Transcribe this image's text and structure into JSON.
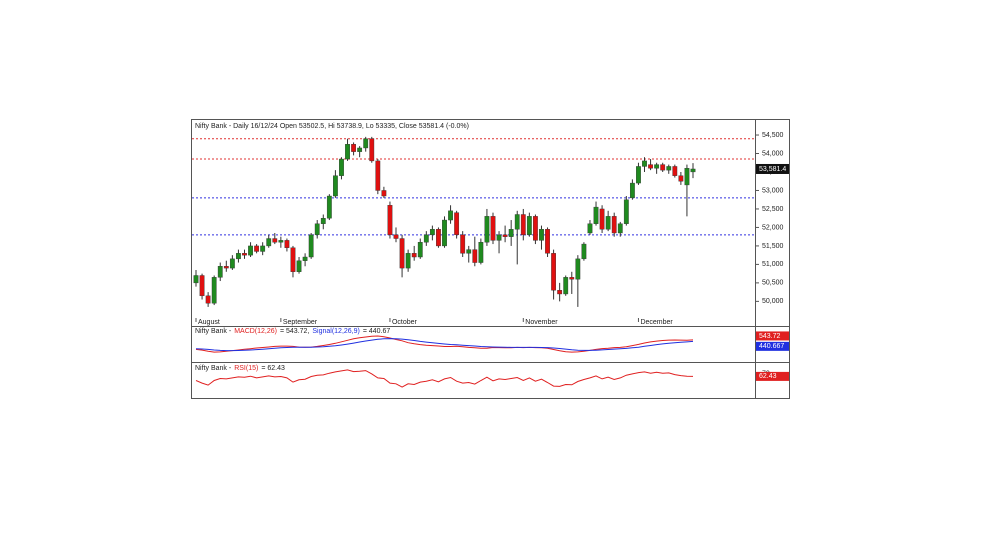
{
  "chart_data": {
    "type": "candlestick",
    "title": "Nifty Bank - Daily 16/12/24 Open 53502.5, Hi 53738.9, Lo 53335, Close 53581.4 (-0.0%)",
    "last_price_label": "53,581.4",
    "up_color": "#1f8a1f",
    "down_color": "#e01010",
    "categories": [
      "August",
      null,
      null,
      null,
      null,
      null,
      null,
      null,
      null,
      null,
      null,
      null,
      null,
      null,
      "September",
      null,
      null,
      null,
      null,
      null,
      null,
      null,
      null,
      null,
      null,
      null,
      null,
      null,
      null,
      null,
      null,
      null,
      "October",
      null,
      null,
      null,
      null,
      null,
      null,
      null,
      null,
      null,
      null,
      null,
      null,
      null,
      null,
      null,
      null,
      null,
      null,
      null,
      null,
      null,
      "November",
      null,
      null,
      null,
      null,
      null,
      null,
      null,
      null,
      null,
      null,
      null,
      null,
      null,
      null,
      null,
      null,
      null,
      null,
      "December",
      null,
      null,
      null,
      null,
      null,
      null,
      null,
      null,
      null
    ],
    "ohlc": [
      [
        50500,
        50850,
        50400,
        50700
      ],
      [
        50700,
        50750,
        50050,
        50150
      ],
      [
        50150,
        50250,
        49850,
        49950
      ],
      [
        49950,
        50700,
        49900,
        50650
      ],
      [
        50650,
        51050,
        50550,
        50950
      ],
      [
        50950,
        51100,
        50800,
        50900
      ],
      [
        50900,
        51250,
        50850,
        51150
      ],
      [
        51150,
        51400,
        51050,
        51300
      ],
      [
        51300,
        51400,
        51150,
        51250
      ],
      [
        51250,
        51600,
        51200,
        51500
      ],
      [
        51500,
        51550,
        51300,
        51350
      ],
      [
        51350,
        51600,
        51250,
        51500
      ],
      [
        51500,
        51800,
        51450,
        51700
      ],
      [
        51700,
        51850,
        51550,
        51600
      ],
      [
        51600,
        51750,
        51450,
        51650
      ],
      [
        51650,
        51700,
        51350,
        51450
      ],
      [
        51450,
        51500,
        50650,
        50800
      ],
      [
        50800,
        51200,
        50750,
        51100
      ],
      [
        51100,
        51300,
        50950,
        51200
      ],
      [
        51200,
        51850,
        51150,
        51800
      ],
      [
        51800,
        52200,
        51700,
        52100
      ],
      [
        52100,
        52350,
        51950,
        52250
      ],
      [
        52250,
        52900,
        52200,
        52850
      ],
      [
        52850,
        53550,
        52800,
        53400
      ],
      [
        53400,
        53900,
        53300,
        53850
      ],
      [
        53850,
        54400,
        53800,
        54250
      ],
      [
        54250,
        54300,
        53950,
        54050
      ],
      [
        54050,
        54200,
        53900,
        54150
      ],
      [
        54150,
        54450,
        54050,
        54400
      ],
      [
        54400,
        54450,
        53750,
        53800
      ],
      [
        53800,
        53850,
        52900,
        53000
      ],
      [
        53000,
        53100,
        52800,
        52850
      ],
      [
        52600,
        52700,
        51700,
        51800
      ],
      [
        51800,
        52000,
        51600,
        51700
      ],
      [
        51700,
        51800,
        50650,
        50900
      ],
      [
        50900,
        51400,
        50800,
        51300
      ],
      [
        51300,
        51500,
        51100,
        51200
      ],
      [
        51200,
        51700,
        51150,
        51600
      ],
      [
        51600,
        51900,
        51500,
        51800
      ],
      [
        51800,
        52050,
        51650,
        51950
      ],
      [
        51950,
        52000,
        51450,
        51500
      ],
      [
        51500,
        52300,
        51450,
        52200
      ],
      [
        52200,
        52600,
        52100,
        52450
      ],
      [
        52400,
        52450,
        51700,
        51800
      ],
      [
        51800,
        51900,
        51200,
        51300
      ],
      [
        51300,
        51500,
        51050,
        51400
      ],
      [
        51400,
        51750,
        50950,
        51050
      ],
      [
        51050,
        51700,
        51000,
        51600
      ],
      [
        51600,
        52500,
        51500,
        52300
      ],
      [
        52300,
        52400,
        51550,
        51650
      ],
      [
        51650,
        51900,
        51300,
        51800
      ],
      [
        51800,
        52050,
        51600,
        51750
      ],
      [
        51750,
        52200,
        51500,
        51950
      ],
      [
        51950,
        52450,
        51000,
        52350
      ],
      [
        52350,
        52500,
        51650,
        51800
      ],
      [
        51800,
        52400,
        51750,
        52300
      ],
      [
        52300,
        52350,
        51550,
        51650
      ],
      [
        51650,
        52050,
        51400,
        51950
      ],
      [
        51950,
        52000,
        51200,
        51300
      ],
      [
        51300,
        51400,
        50050,
        50300
      ],
      [
        50300,
        50500,
        50000,
        50200
      ],
      [
        50200,
        50700,
        50150,
        50650
      ],
      [
        50650,
        50800,
        50200,
        50600
      ],
      [
        50600,
        51250,
        49850,
        51150
      ],
      [
        51150,
        51600,
        51100,
        51550
      ],
      [
        51850,
        52200,
        51800,
        52100
      ],
      [
        52100,
        52700,
        52050,
        52550
      ],
      [
        52500,
        52600,
        51850,
        51950
      ],
      [
        51950,
        52450,
        51900,
        52300
      ],
      [
        52300,
        52400,
        51750,
        51850
      ],
      [
        51850,
        52150,
        51750,
        52100
      ],
      [
        52100,
        52850,
        52050,
        52750
      ],
      [
        52800,
        53300,
        52750,
        53200
      ],
      [
        53200,
        53750,
        53150,
        53650
      ],
      [
        53650,
        53900,
        53500,
        53800
      ],
      [
        53700,
        53850,
        53550,
        53600
      ],
      [
        53600,
        53750,
        53450,
        53700
      ],
      [
        53700,
        53750,
        53500,
        53550
      ],
      [
        53550,
        53700,
        53450,
        53650
      ],
      [
        53650,
        53700,
        53350,
        53400
      ],
      [
        53400,
        53500,
        53150,
        53250
      ],
      [
        53150,
        53700,
        52300,
        53600
      ],
      [
        53502.5,
        53738.9,
        53335,
        53581.4
      ]
    ],
    "ylim": [
      49550,
      54690
    ],
    "yticks": [
      {
        "value": 50000,
        "label": "50,000"
      },
      {
        "value": 50500,
        "label": "50,500"
      },
      {
        "value": 51000,
        "label": "51,000"
      },
      {
        "value": 51500,
        "label": "51,500"
      },
      {
        "value": 52000,
        "label": "52,000"
      },
      {
        "value": 52500,
        "label": "52,500"
      },
      {
        "value": 53000,
        "label": "53,000"
      },
      {
        "value": 53500,
        "label": "53,500"
      },
      {
        "value": 54000,
        "label": "54,000"
      },
      {
        "value": 54500,
        "label": "54,500"
      }
    ],
    "levels": [
      {
        "value": 54400,
        "color": "#e03030"
      },
      {
        "value": 53850,
        "color": "#e03030"
      },
      {
        "value": 52800,
        "color": "#3030e0"
      },
      {
        "value": 51800,
        "color": "#3030e0"
      }
    ],
    "macd": {
      "label_parts": [
        "Nifty Bank -",
        "MACD(12,26)",
        "= 543.72,",
        "Signal(12,26,9)",
        "= 440.67"
      ],
      "ylim": [
        -1000,
        1200
      ],
      "series": [
        {
          "name": "MACD",
          "color": "#e02020",
          "tag": "543.72",
          "values": [
            -150,
            -200,
            -280,
            -350,
            -330,
            -290,
            -240,
            -190,
            -140,
            -100,
            -50,
            -10,
            30,
            70,
            90,
            90,
            70,
            20,
            10,
            20,
            70,
            140,
            210,
            300,
            410,
            520,
            630,
            700,
            760,
            820,
            830,
            780,
            690,
            580,
            480,
            340,
            260,
            200,
            160,
            130,
            100,
            60,
            60,
            80,
            50,
            0,
            -30,
            -70,
            -60,
            -10,
            -20,
            -30,
            -30,
            0,
            -20,
            0,
            -20,
            -30,
            -60,
            -160,
            -250,
            -320,
            -350,
            -330,
            -290,
            -220,
            -150,
            -90,
            -60,
            -20,
            0,
            50,
            130,
            220,
            320,
            400,
            460,
            500,
            530,
            540,
            530,
            520,
            543.72
          ]
        },
        {
          "name": "Signal",
          "color": "#2030e0",
          "tag": "440.667",
          "values": [
            -100,
            -120,
            -150,
            -190,
            -220,
            -235,
            -240,
            -230,
            -215,
            -195,
            -165,
            -135,
            -100,
            -65,
            -35,
            -10,
            10,
            15,
            15,
            15,
            25,
            45,
            75,
            115,
            170,
            240,
            315,
            390,
            465,
            535,
            595,
            630,
            645,
            635,
            605,
            555,
            500,
            440,
            385,
            335,
            290,
            245,
            210,
            185,
            160,
            130,
            100,
            65,
            40,
            30,
            20,
            10,
            0,
            0,
            -5,
            -5,
            -5,
            -10,
            -20,
            -45,
            -85,
            -130,
            -175,
            -205,
            -225,
            -225,
            -210,
            -185,
            -160,
            -130,
            -105,
            -75,
            -35,
            15,
            75,
            140,
            200,
            255,
            305,
            345,
            375,
            400,
            440.67
          ]
        }
      ]
    },
    "rsi": {
      "label_parts": [
        "Nifty Bank -",
        "RSI(15)",
        "= 62.43"
      ],
      "ylim": [
        0,
        100
      ],
      "yticks": [
        70
      ],
      "color": "#e02020",
      "tag": "62.43",
      "values": [
        50,
        42,
        36,
        50,
        56,
        55,
        58,
        61,
        60,
        63,
        58,
        61,
        64,
        61,
        62,
        58,
        45,
        52,
        54,
        62,
        66,
        67,
        72,
        76,
        79,
        82,
        77,
        78,
        80,
        70,
        58,
        56,
        42,
        40,
        30,
        40,
        38,
        45,
        48,
        52,
        46,
        55,
        59,
        48,
        42,
        44,
        39,
        50,
        60,
        49,
        55,
        53,
        56,
        59,
        50,
        58,
        48,
        54,
        44,
        33,
        32,
        38,
        37,
        47,
        53,
        58,
        64,
        55,
        60,
        53,
        58,
        66,
        70,
        74,
        76,
        72,
        75,
        72,
        73,
        68,
        65,
        63,
        62.43
      ]
    }
  }
}
